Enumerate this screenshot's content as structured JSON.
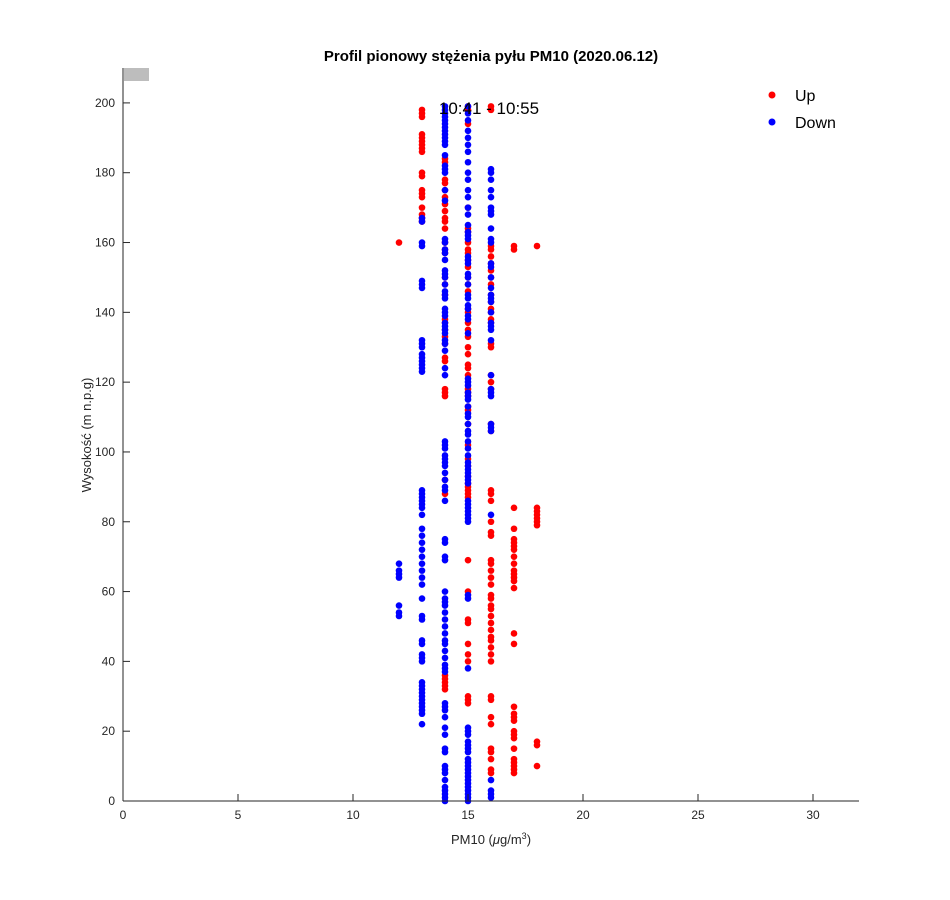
{
  "chart_data": {
    "type": "scatter",
    "title": "Profil pionowy stężenia pyłu PM10 (2020.06.12)",
    "xlabel_prefix": "PM10 (",
    "xlabel_unit_mu": "μ",
    "xlabel_unit": "g/m",
    "xlabel_exp": "3",
    "xlabel_suffix": ")",
    "ylabel": "Wysokość (m n.p.g)",
    "annotation": "10:41 - 10:55",
    "xlim": [
      0,
      32
    ],
    "ylim": [
      0,
      210
    ],
    "xticks": [
      0,
      5,
      10,
      15,
      20,
      25,
      30
    ],
    "yticks": [
      0,
      20,
      40,
      60,
      80,
      100,
      120,
      140,
      160,
      180,
      200
    ],
    "grid": false,
    "legend_position": "top-right",
    "series": [
      {
        "name": "Up",
        "color": "#ff0000",
        "points_by_x": {
          "12": [
            160
          ],
          "13": [
            198,
            197,
            196,
            191,
            190,
            189,
            188,
            187,
            186,
            180,
            179,
            175,
            174,
            173,
            170,
            168,
            167,
            166
          ],
          "14": [
            184,
            183,
            178,
            177,
            175,
            173,
            171,
            169,
            167,
            166,
            164,
            160,
            158,
            157,
            150,
            148,
            145,
            138,
            137,
            135,
            133,
            131,
            127,
            126,
            118,
            117,
            116,
            92,
            88,
            36,
            35,
            34,
            33,
            32
          ],
          "15": [
            199,
            198,
            194,
            170,
            164,
            163,
            160,
            158,
            157,
            155,
            153,
            150,
            148,
            146,
            141,
            140,
            137,
            135,
            133,
            130,
            128,
            125,
            124,
            122,
            118,
            117,
            116,
            113,
            112,
            108,
            102,
            98,
            96,
            93,
            91,
            90,
            89,
            88,
            87,
            69,
            60,
            52,
            51,
            45,
            42,
            40,
            30,
            29,
            28
          ],
          "16": [
            199,
            198,
            159,
            158,
            156,
            154,
            152,
            150,
            148,
            145,
            143,
            141,
            140,
            138,
            137,
            131,
            130,
            122,
            120,
            118,
            108,
            106,
            89,
            88,
            86,
            80,
            77,
            76,
            69,
            68,
            66,
            64,
            62,
            59,
            58,
            56,
            55,
            53,
            51,
            49,
            47,
            46,
            44,
            42,
            40,
            30,
            29,
            24,
            22,
            15,
            14,
            12,
            9,
            8
          ],
          "17": [
            159,
            158,
            84,
            78,
            75,
            74,
            73,
            72,
            70,
            68,
            66,
            65,
            64,
            63,
            61,
            48,
            45,
            27,
            25,
            24,
            23,
            20,
            19,
            18,
            15,
            12,
            11,
            10,
            9,
            8
          ],
          "18": [
            159,
            84,
            83,
            82,
            81,
            80,
            79,
            17,
            16,
            10
          ]
        }
      },
      {
        "name": "Down",
        "color": "#0000ff",
        "points_by_x": {
          "12": [
            68,
            66,
            65,
            64,
            56,
            54,
            53
          ],
          "13": [
            167,
            166,
            160,
            159,
            149,
            148,
            147,
            132,
            131,
            130,
            128,
            127,
            126,
            125,
            124,
            123,
            89,
            88,
            87,
            86,
            85,
            84,
            82,
            78,
            76,
            74,
            72,
            70,
            68,
            66,
            64,
            62,
            58,
            53,
            52,
            46,
            45,
            42,
            41,
            40,
            34,
            33,
            32,
            31,
            30,
            29,
            28,
            27,
            26,
            25,
            22
          ],
          "14": [
            199,
            198,
            197,
            196,
            195,
            194,
            193,
            192,
            191,
            190,
            189,
            188,
            185,
            182,
            181,
            180,
            175,
            172,
            161,
            160,
            158,
            157,
            155,
            152,
            151,
            150,
            148,
            146,
            145,
            144,
            141,
            140,
            139,
            137,
            136,
            135,
            134,
            132,
            131,
            129,
            124,
            122,
            103,
            102,
            101,
            99,
            98,
            97,
            96,
            94,
            92,
            90,
            89,
            86,
            75,
            74,
            70,
            69,
            60,
            58,
            57,
            56,
            54,
            52,
            50,
            48,
            46,
            45,
            43,
            41,
            39,
            38,
            37,
            28,
            27,
            26,
            24,
            21,
            19,
            15,
            14,
            10,
            9,
            8,
            6,
            4,
            3,
            2,
            1,
            0
          ],
          "15": [
            199,
            197,
            195,
            192,
            190,
            188,
            186,
            183,
            180,
            178,
            175,
            173,
            170,
            168,
            165,
            163,
            162,
            161,
            156,
            155,
            154,
            151,
            150,
            148,
            145,
            144,
            142,
            141,
            139,
            138,
            134,
            121,
            120,
            119,
            117,
            116,
            115,
            113,
            111,
            110,
            108,
            106,
            105,
            103,
            101,
            99,
            97,
            96,
            95,
            94,
            93,
            92,
            91,
            86,
            85,
            84,
            83,
            82,
            81,
            80,
            59,
            58,
            38,
            21,
            20,
            19,
            17,
            16,
            15,
            14,
            12,
            11,
            10,
            9,
            8,
            7,
            6,
            5,
            4,
            3,
            2,
            1,
            0
          ],
          "16": [
            181,
            180,
            178,
            175,
            173,
            170,
            169,
            168,
            164,
            161,
            160,
            154,
            153,
            150,
            147,
            145,
            144,
            143,
            140,
            137,
            136,
            135,
            132,
            122,
            118,
            117,
            116,
            108,
            107,
            106,
            82,
            6,
            3,
            2,
            1
          ]
        }
      }
    ]
  }
}
